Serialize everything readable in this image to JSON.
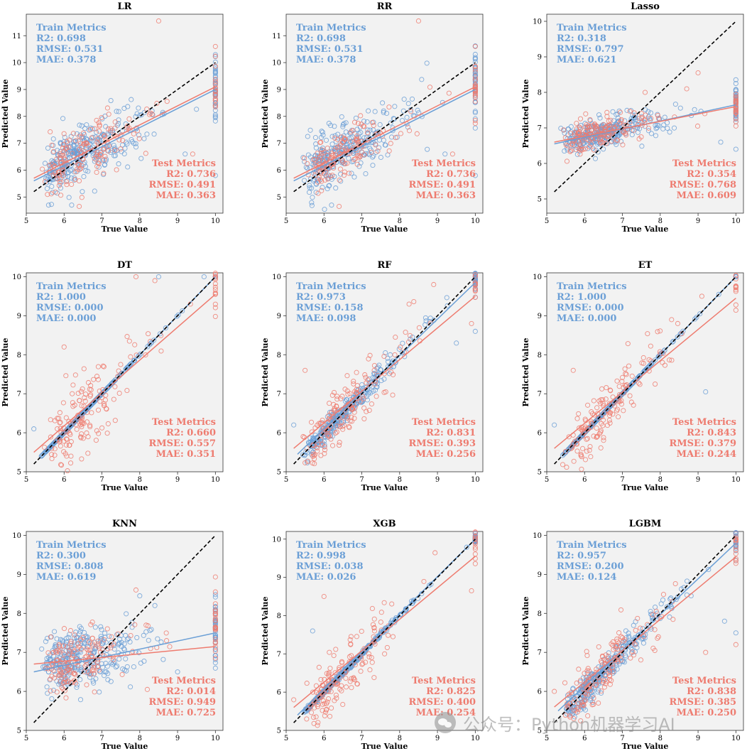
{
  "colors": {
    "train": "#6b9fd6",
    "test": "#ee7b6f",
    "identity": "#000000",
    "panel_bg": "#f2f2f2"
  },
  "labels": {
    "train_heading": "Train Metrics",
    "test_heading": "Test Metrics"
  },
  "watermark": {
    "text": "公众号：Python机器学习AI"
  },
  "chart_data": [
    {
      "type": "scatter",
      "title": "LR",
      "xlabel": "True Value",
      "ylabel": "Predicted Value",
      "xlim": [
        5,
        10.2
      ],
      "ylim": [
        4.4,
        11.8
      ],
      "xticks": [
        5,
        6,
        7,
        8,
        9,
        10
      ],
      "yticks": [
        5,
        6,
        7,
        8,
        9,
        10,
        11
      ],
      "identity_line": [
        5.2,
        10
      ],
      "train_metrics": {
        "r2": "R2: 0.698",
        "rmse": "RMSE: 0.531",
        "mae": "MAE: 0.378"
      },
      "test_metrics": {
        "r2": "R2: 0.736",
        "rmse": "RMSE: 0.491",
        "mae": "MAE: 0.363"
      },
      "fit_train": [
        [
          5.2,
          5.6
        ],
        [
          10,
          9.0
        ]
      ],
      "fit_test": [
        [
          5.2,
          5.7
        ],
        [
          10,
          9.1
        ]
      ],
      "noise": 0.55,
      "test_noise": 0.5,
      "slope": 0.7,
      "outliers": [
        [
          8.5,
          11.55
        ],
        [
          9.2,
          6.6
        ],
        [
          9.4,
          6.6
        ],
        [
          6.2,
          4.7
        ],
        [
          6.4,
          4.65
        ],
        [
          10,
          5.8
        ],
        [
          10,
          10.6
        ],
        [
          10,
          9.6
        ]
      ]
    },
    {
      "type": "scatter",
      "title": "RR",
      "xlabel": "True Value",
      "ylabel": "Predicted Value",
      "xlim": [
        5,
        10.2
      ],
      "ylim": [
        4.4,
        11.8
      ],
      "xticks": [
        5,
        6,
        7,
        8,
        9,
        10
      ],
      "yticks": [
        5,
        6,
        7,
        8,
        9,
        10,
        11
      ],
      "identity_line": [
        5.2,
        10
      ],
      "train_metrics": {
        "r2": "R2: 0.698",
        "rmse": "RMSE: 0.531",
        "mae": "MAE: 0.378"
      },
      "test_metrics": {
        "r2": "R2: 0.736",
        "rmse": "RMSE: 0.491",
        "mae": "MAE: 0.363"
      },
      "fit_train": [
        [
          5.2,
          5.6
        ],
        [
          10,
          9.0
        ]
      ],
      "fit_test": [
        [
          5.2,
          5.7
        ],
        [
          10,
          9.1
        ]
      ],
      "noise": 0.55,
      "test_noise": 0.5,
      "slope": 0.7,
      "outliers": [
        [
          8.5,
          11.55
        ],
        [
          9.2,
          6.6
        ],
        [
          9.4,
          6.6
        ],
        [
          6.2,
          4.7
        ],
        [
          6.4,
          4.65
        ],
        [
          10,
          5.8
        ],
        [
          10,
          10.6
        ],
        [
          10,
          9.6
        ]
      ]
    },
    {
      "type": "scatter",
      "title": "Lasso",
      "xlabel": "True Value",
      "ylabel": "Predicted Value",
      "xlim": [
        5,
        10.2
      ],
      "ylim": [
        4.6,
        10.2
      ],
      "xticks": [
        5,
        6,
        7,
        8,
        9,
        10
      ],
      "yticks": [
        5,
        6,
        7,
        8,
        9,
        10
      ],
      "identity_line": [
        5.2,
        10
      ],
      "train_metrics": {
        "r2": "R2: 0.318",
        "rmse": "RMSE: 0.797",
        "mae": "MAE: 0.621"
      },
      "test_metrics": {
        "r2": "R2: 0.354",
        "rmse": "RMSE: 0.768",
        "mae": "MAE: 0.609"
      },
      "fit_train": [
        [
          5.2,
          6.55
        ],
        [
          10,
          7.65
        ]
      ],
      "fit_test": [
        [
          5.2,
          6.6
        ],
        [
          10,
          7.6
        ]
      ],
      "noise": 0.22,
      "test_noise": 0.22,
      "slope": 0.23,
      "outliers": [
        [
          9.0,
          8.55
        ],
        [
          10,
          8.25
        ],
        [
          8.7,
          8.1
        ],
        [
          9.6,
          6.6
        ],
        [
          7.6,
          8.0
        ],
        [
          10,
          6.4
        ]
      ]
    },
    {
      "type": "scatter",
      "title": "DT",
      "xlabel": "True Value",
      "ylabel": "Predicted Value",
      "xlim": [
        5,
        10.2
      ],
      "ylim": [
        5,
        10.1
      ],
      "xticks": [
        5,
        6,
        7,
        8,
        9,
        10
      ],
      "yticks": [
        5,
        6,
        7,
        8,
        9,
        10
      ],
      "identity_line": [
        5.2,
        10
      ],
      "train_metrics": {
        "r2": "R2: 1.000",
        "rmse": "RMSE: 0.000",
        "mae": "MAE: 0.000"
      },
      "test_metrics": {
        "r2": "R2: 0.660",
        "rmse": "RMSE: 0.557",
        "mae": "MAE: 0.351"
      },
      "fit_train": [
        [
          5.4,
          5.4
        ],
        [
          10,
          10
        ]
      ],
      "fit_test": [
        [
          5.2,
          5.5
        ],
        [
          10,
          9.55
        ]
      ],
      "noise": 0.0,
      "test_noise": 0.55,
      "slope": 1.0,
      "outliers": [
        [
          7.9,
          10.0
        ],
        [
          8.5,
          10.0
        ],
        [
          8.4,
          9.9
        ],
        [
          9.7,
          10.0
        ],
        [
          6.0,
          8.2
        ],
        [
          5.2,
          6.1
        ]
      ]
    },
    {
      "type": "scatter",
      "title": "RF",
      "xlabel": "True Value",
      "ylabel": "Predicted Value",
      "xlim": [
        5,
        10.2
      ],
      "ylim": [
        5,
        10.1
      ],
      "xticks": [
        5,
        6,
        7,
        8,
        9,
        10
      ],
      "yticks": [
        5,
        6,
        7,
        8,
        9,
        10
      ],
      "identity_line": [
        5.2,
        10
      ],
      "train_metrics": {
        "r2": "R2: 0.973",
        "rmse": "RMSE: 0.158",
        "mae": "MAE: 0.098"
      },
      "test_metrics": {
        "r2": "R2: 0.831",
        "rmse": "RMSE: 0.393",
        "mae": "MAE: 0.256"
      },
      "fit_train": [
        [
          5.3,
          5.45
        ],
        [
          10,
          9.85
        ]
      ],
      "fit_test": [
        [
          5.2,
          5.6
        ],
        [
          10,
          9.5
        ]
      ],
      "noise": 0.14,
      "test_noise": 0.38,
      "slope": 1.0,
      "outliers": [
        [
          5.5,
          7.6
        ],
        [
          10,
          8.6
        ],
        [
          9.9,
          8.8
        ],
        [
          9.5,
          8.3
        ],
        [
          8.9,
          9.8
        ],
        [
          5.2,
          6.2
        ]
      ]
    },
    {
      "type": "scatter",
      "title": "ET",
      "xlabel": "True Value",
      "ylabel": "Predicted Value",
      "xlim": [
        5,
        10.2
      ],
      "ylim": [
        5,
        10.1
      ],
      "xticks": [
        5,
        6,
        7,
        8,
        9,
        10
      ],
      "yticks": [
        5,
        6,
        7,
        8,
        9,
        10
      ],
      "identity_line": [
        5.2,
        10
      ],
      "train_metrics": {
        "r2": "R2: 1.000",
        "rmse": "RMSE: 0.000",
        "mae": "MAE: 0.000"
      },
      "test_metrics": {
        "r2": "R2: 0.843",
        "rmse": "RMSE: 0.379",
        "mae": "MAE: 0.244"
      },
      "fit_train": [
        [
          5.4,
          5.4
        ],
        [
          10,
          10
        ]
      ],
      "fit_test": [
        [
          5.2,
          5.6
        ],
        [
          10,
          9.45
        ]
      ],
      "noise": 0.0,
      "test_noise": 0.36,
      "slope": 1.0,
      "outliers": [
        [
          5.7,
          7.6
        ],
        [
          9.2,
          7.05
        ],
        [
          9.1,
          9.5
        ],
        [
          5.2,
          6.2
        ],
        [
          8.3,
          8.9
        ]
      ]
    },
    {
      "type": "scatter",
      "title": "KNN",
      "xlabel": "True Value",
      "ylabel": "Predicted Value",
      "xlim": [
        5,
        10.2
      ],
      "ylim": [
        5,
        10.1
      ],
      "xticks": [
        5,
        6,
        7,
        8,
        9,
        10
      ],
      "yticks": [
        5,
        6,
        7,
        8,
        9,
        10
      ],
      "identity_line": [
        5.2,
        10
      ],
      "train_metrics": {
        "r2": "R2: 0.300",
        "rmse": "RMSE: 0.808",
        "mae": "MAE: 0.619"
      },
      "test_metrics": {
        "r2": "R2: 0.014",
        "rmse": "RMSE: 0.949",
        "mae": "MAE: 0.725"
      },
      "fit_train": [
        [
          5.2,
          6.5
        ],
        [
          10,
          7.5
        ]
      ],
      "fit_test": [
        [
          5.2,
          6.7
        ],
        [
          10,
          7.15
        ]
      ],
      "noise": 0.38,
      "test_noise": 0.42,
      "slope": 0.2,
      "outliers": [
        [
          7.9,
          8.6
        ],
        [
          8.0,
          8.45
        ],
        [
          10,
          8.55
        ],
        [
          8.4,
          8.2
        ],
        [
          8.2,
          6.05
        ],
        [
          9.0,
          6.5
        ]
      ]
    },
    {
      "type": "scatter",
      "title": "XGB",
      "xlabel": "True Value",
      "ylabel": "Predicted Value",
      "xlim": [
        5,
        10.2
      ],
      "ylim": [
        5,
        10.2
      ],
      "xticks": [
        5,
        6,
        7,
        8,
        9,
        10
      ],
      "yticks": [
        5,
        6,
        7,
        8,
        9,
        10
      ],
      "identity_line": [
        5.2,
        10
      ],
      "train_metrics": {
        "r2": "R2: 0.998",
        "rmse": "RMSE: 0.038",
        "mae": "MAE: 0.026"
      },
      "test_metrics": {
        "r2": "R2: 0.825",
        "rmse": "RMSE: 0.400",
        "mae": "MAE: 0.254"
      },
      "fit_train": [
        [
          5.3,
          5.4
        ],
        [
          10,
          10.0
        ]
      ],
      "fit_test": [
        [
          5.2,
          5.6
        ],
        [
          10,
          9.55
        ]
      ],
      "noise": 0.03,
      "test_noise": 0.4,
      "slope": 1.0,
      "outliers": [
        [
          6.0,
          8.5
        ],
        [
          5.7,
          7.6
        ],
        [
          9.9,
          8.65
        ],
        [
          10,
          10.15
        ],
        [
          5.2,
          5.8
        ]
      ]
    },
    {
      "type": "scatter",
      "title": "LGBM",
      "xlabel": "True Value",
      "ylabel": "Predicted Value",
      "xlim": [
        5,
        10.2
      ],
      "ylim": [
        5,
        10.1
      ],
      "xticks": [
        5,
        6,
        7,
        8,
        9,
        10
      ],
      "yticks": [
        5,
        6,
        7,
        8,
        9,
        10
      ],
      "identity_line": [
        5.2,
        10
      ],
      "train_metrics": {
        "r2": "R2: 0.957",
        "rmse": "RMSE: 0.200",
        "mae": "MAE: 0.124"
      },
      "test_metrics": {
        "r2": "R2: 0.838",
        "rmse": "RMSE: 0.385",
        "mae": "MAE: 0.250"
      },
      "fit_train": [
        [
          5.3,
          5.5
        ],
        [
          10,
          9.8
        ]
      ],
      "fit_test": [
        [
          5.2,
          5.6
        ],
        [
          10,
          9.45
        ]
      ],
      "noise": 0.18,
      "test_noise": 0.37,
      "slope": 1.0,
      "outliers": [
        [
          10,
          7.2
        ],
        [
          10,
          7.5
        ],
        [
          9.2,
          7.0
        ],
        [
          9.7,
          7.8
        ],
        [
          5.2,
          6.0
        ],
        [
          10,
          10.05
        ]
      ]
    }
  ]
}
